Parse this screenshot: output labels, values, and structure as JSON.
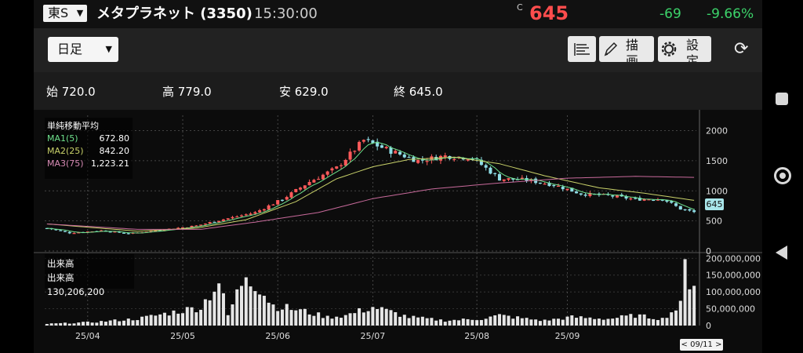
{
  "header": {
    "market": "東S",
    "stock_title": "メタプラネット (3350)",
    "time": "15:30:00",
    "price_mark": "C",
    "price": "645",
    "change": "-69",
    "change_pct": "-9.66%"
  },
  "toolbar": {
    "period": "日足",
    "draw_label": "描画",
    "settings_label": "設定"
  },
  "ohlc": {
    "open": "始 720.0",
    "high": "高 779.0",
    "low": "安 629.0",
    "close": "終 645.0"
  },
  "legend": {
    "title": "単純移動平均",
    "ma1_label": "MA1(5)",
    "ma1_value": "672.80",
    "ma2_label": "MA2(25)",
    "ma2_value": "842.20",
    "ma3_label": "MA3(75)",
    "ma3_value": "1,223.21"
  },
  "volume_legend": {
    "title": "出来高",
    "label": "出来高",
    "value": "130,206,200"
  },
  "current_price_tag": "645",
  "cursor_date": "< 09/11 >",
  "colors": {
    "up": "#ff5a5a",
    "down": "#8fdde6",
    "ma1": "#6ee08c",
    "ma2": "#c9d26a",
    "ma3": "#c86a9b",
    "price": "#ff4d4d",
    "change": "#3cd36a"
  },
  "chart_data": {
    "type": "candlestick",
    "x_tick_labels": [
      "25/04",
      "25/05",
      "25/06",
      "25/07",
      "25/08",
      "25/09"
    ],
    "price_axis": {
      "ticks": [
        0,
        500,
        1000,
        1500,
        2000
      ],
      "range": [
        0,
        2000
      ]
    },
    "volume_axis": {
      "ticks": [
        "0",
        "50,000,000",
        "100,000,000",
        "150,000,000",
        "200,000,000"
      ],
      "range": [
        0,
        200000000
      ]
    },
    "control_points": {
      "close": [
        [
          0,
          380
        ],
        [
          5,
          300
        ],
        [
          12,
          340
        ],
        [
          18,
          290
        ],
        [
          24,
          340
        ],
        [
          33,
          420
        ],
        [
          38,
          510
        ],
        [
          46,
          640
        ],
        [
          52,
          860
        ],
        [
          58,
          1150
        ],
        [
          64,
          1380
        ],
        [
          70,
          1840
        ],
        [
          76,
          1660
        ],
        [
          82,
          1500
        ],
        [
          88,
          1580
        ],
        [
          94,
          1550
        ],
        [
          100,
          1200
        ],
        [
          106,
          1180
        ],
        [
          112,
          1100
        ],
        [
          118,
          950
        ],
        [
          124,
          920
        ],
        [
          130,
          860
        ],
        [
          136,
          870
        ],
        [
          140,
          700
        ],
        [
          143,
          645
        ]
      ],
      "ma2": [
        [
          0,
          450
        ],
        [
          20,
          330
        ],
        [
          33,
          380
        ],
        [
          44,
          520
        ],
        [
          55,
          820
        ],
        [
          64,
          1200
        ],
        [
          72,
          1400
        ],
        [
          80,
          1520
        ],
        [
          90,
          1560
        ],
        [
          100,
          1450
        ],
        [
          110,
          1250
        ],
        [
          122,
          1050
        ],
        [
          132,
          960
        ],
        [
          143,
          842
        ]
      ],
      "ma3": [
        [
          0,
          450
        ],
        [
          20,
          360
        ],
        [
          34,
          360
        ],
        [
          46,
          480
        ],
        [
          60,
          640
        ],
        [
          72,
          870
        ],
        [
          85,
          1030
        ],
        [
          100,
          1130
        ],
        [
          115,
          1210
        ],
        [
          130,
          1240
        ],
        [
          143,
          1223
        ]
      ],
      "volume": [
        [
          0,
          5
        ],
        [
          10,
          10
        ],
        [
          20,
          20
        ],
        [
          28,
          40
        ],
        [
          34,
          55
        ],
        [
          38,
          130
        ],
        [
          40,
          30
        ],
        [
          44,
          160
        ],
        [
          50,
          60
        ],
        [
          56,
          45
        ],
        [
          62,
          25
        ],
        [
          66,
          30
        ],
        [
          72,
          55
        ],
        [
          80,
          25
        ],
        [
          88,
          15
        ],
        [
          96,
          20
        ],
        [
          100,
          30
        ],
        [
          106,
          20
        ],
        [
          110,
          15
        ],
        [
          116,
          25
        ],
        [
          124,
          20
        ],
        [
          130,
          30
        ],
        [
          136,
          20
        ],
        [
          140,
          60
        ],
        [
          141,
          175
        ],
        [
          142,
          135
        ],
        [
          143,
          130
        ]
      ]
    },
    "xlabel": "",
    "ylabel": ""
  }
}
